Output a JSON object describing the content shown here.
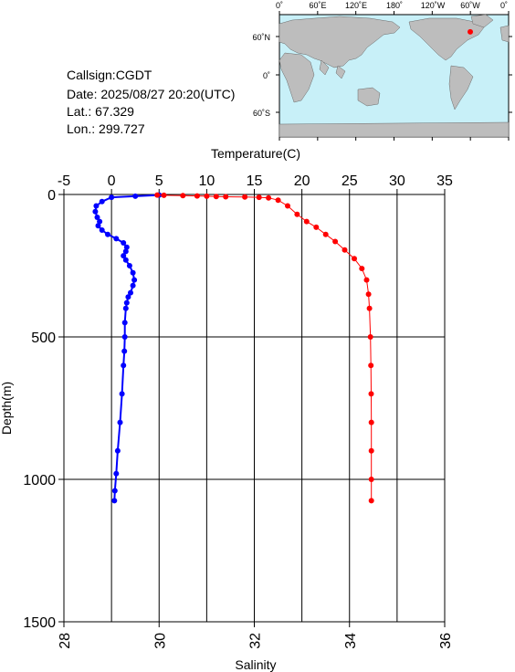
{
  "info": {
    "callsign": "Callsign:CGDT",
    "date": "Date:  2025/08/27 20:20(UTC)",
    "lat": "Lat.:  67.329",
    "lon": "Lon.:  299.727"
  },
  "map": {
    "lon_labels": [
      "0˚",
      "60˚E",
      "120˚E",
      "180˚",
      "120˚W",
      "60˚W",
      "0˚"
    ],
    "lat_labels": [
      "60˚N",
      "0˚",
      "60˚S"
    ],
    "ocean_color": "#c8f0f8",
    "land_color": "#bdbdbd",
    "marker_color": "#ff0000",
    "station": {
      "lat": 67.329,
      "lon": 299.727
    }
  },
  "chart_data": {
    "type": "line",
    "ylabel": "Depth(m)",
    "y_ticks": [
      "0",
      "500",
      "1000",
      "1500"
    ],
    "ylim": [
      0,
      1500
    ],
    "y_inverted": true,
    "grid": true,
    "top_axis": {
      "label": "Temperature(C)",
      "range": [
        -5,
        35
      ],
      "ticks": [
        "-5",
        "0",
        "5",
        "10",
        "15",
        "20",
        "25",
        "30",
        "35"
      ]
    },
    "bottom_axis": {
      "label": "Salinity",
      "range": [
        28,
        36
      ],
      "ticks": [
        "28",
        "30",
        "32",
        "34",
        "36"
      ]
    },
    "series": [
      {
        "axis": "bottom",
        "color": "#0000ff",
        "points": [
          [
            30.0,
            2
          ],
          [
            29.5,
            6
          ],
          [
            29.0,
            10
          ],
          [
            28.8,
            25
          ],
          [
            28.68,
            40
          ],
          [
            28.66,
            60
          ],
          [
            28.7,
            80
          ],
          [
            28.75,
            95
          ],
          [
            28.72,
            110
          ],
          [
            28.8,
            125
          ],
          [
            28.92,
            140
          ],
          [
            29.1,
            155
          ],
          [
            29.25,
            170
          ],
          [
            29.32,
            185
          ],
          [
            29.3,
            200
          ],
          [
            29.25,
            215
          ],
          [
            29.3,
            230
          ],
          [
            29.38,
            250
          ],
          [
            29.45,
            275
          ],
          [
            29.48,
            300
          ],
          [
            29.45,
            320
          ],
          [
            29.4,
            345
          ],
          [
            29.35,
            360
          ],
          [
            29.32,
            380
          ],
          [
            29.3,
            400
          ],
          [
            29.28,
            450
          ],
          [
            29.28,
            500
          ],
          [
            29.27,
            550
          ],
          [
            29.25,
            600
          ],
          [
            29.22,
            700
          ],
          [
            29.18,
            800
          ],
          [
            29.13,
            900
          ],
          [
            29.1,
            980
          ],
          [
            29.07,
            1040
          ],
          [
            29.06,
            1075
          ]
        ]
      },
      {
        "axis": "top",
        "color": "#ff0000",
        "points": [
          [
            4.8,
            2
          ],
          [
            5.5,
            3
          ],
          [
            7.5,
            4
          ],
          [
            9.0,
            5
          ],
          [
            10.0,
            6
          ],
          [
            11.0,
            7
          ],
          [
            12.0,
            8
          ],
          [
            14.0,
            9
          ],
          [
            15.5,
            10
          ],
          [
            16.5,
            12
          ],
          [
            17.5,
            20
          ],
          [
            18.5,
            40
          ],
          [
            19.5,
            70
          ],
          [
            20.5,
            95
          ],
          [
            21.5,
            115
          ],
          [
            22.5,
            140
          ],
          [
            23.5,
            165
          ],
          [
            24.5,
            195
          ],
          [
            25.5,
            225
          ],
          [
            26.3,
            260
          ],
          [
            26.8,
            300
          ],
          [
            27.0,
            350
          ],
          [
            27.1,
            400
          ],
          [
            27.2,
            500
          ],
          [
            27.25,
            600
          ],
          [
            27.28,
            700
          ],
          [
            27.3,
            800
          ],
          [
            27.3,
            900
          ],
          [
            27.3,
            1000
          ],
          [
            27.3,
            1075
          ]
        ]
      }
    ]
  }
}
